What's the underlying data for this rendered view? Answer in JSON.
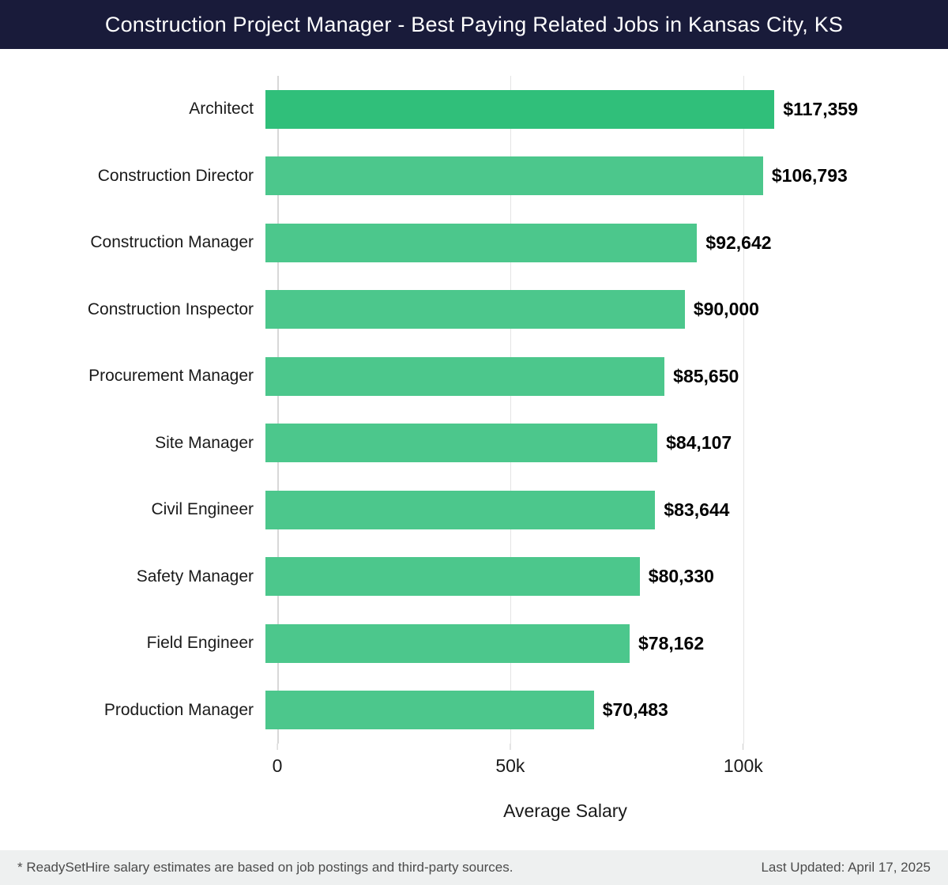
{
  "header": {
    "title": "Construction Project Manager - Best Paying Related Jobs in Kansas City, KS",
    "bg_color": "#191b3a",
    "text_color": "#ffffff"
  },
  "chart_data": {
    "type": "bar",
    "orientation": "horizontal",
    "title": "Construction Project Manager - Best Paying Related Jobs in Kansas City, KS",
    "categories": [
      "Architect",
      "Construction Director",
      "Construction Manager",
      "Construction Inspector",
      "Procurement Manager",
      "Site Manager",
      "Civil Engineer",
      "Safety Manager",
      "Field Engineer",
      "Production Manager"
    ],
    "values": [
      117359,
      106793,
      92642,
      90000,
      85650,
      84107,
      83644,
      80330,
      78162,
      70483
    ],
    "value_labels": [
      "$117,359",
      "$106,793",
      "$92,642",
      "$90,000",
      "$85,650",
      "$84,107",
      "$83,644",
      "$80,330",
      "$78,162",
      "$70,483"
    ],
    "xlabel": "Average Salary",
    "x_ticks": [
      {
        "value": 0,
        "label": "0"
      },
      {
        "value": 50000,
        "label": "50k"
      },
      {
        "value": 100000,
        "label": "100k"
      }
    ],
    "xlim": [
      0,
      123600
    ],
    "grid": true,
    "legend": false,
    "bar_color": "#4cc78c",
    "highlight_color": "#30bf7a",
    "grid_color": "#e4e4e4"
  },
  "footer": {
    "note": "* ReadySetHire salary estimates are based on job postings and third-party sources.",
    "last_updated": "Last Updated: April 17, 2025"
  }
}
